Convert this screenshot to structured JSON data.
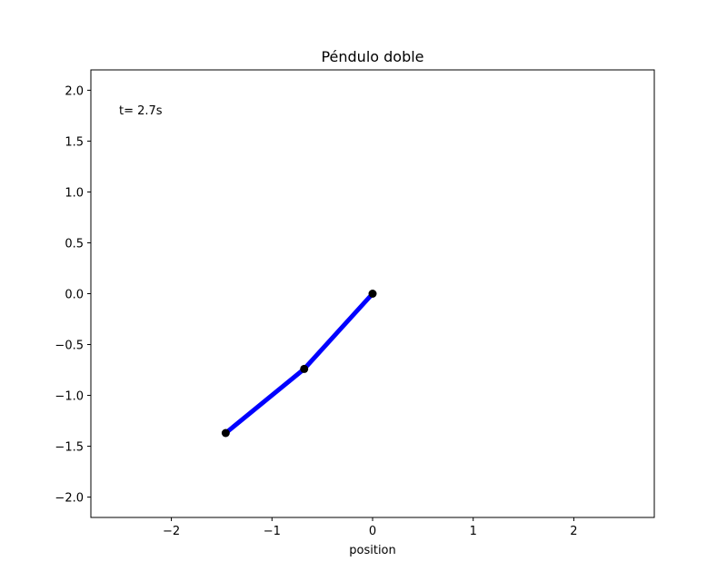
{
  "chart_data": {
    "type": "line",
    "title": "Péndulo doble",
    "xlabel": "position",
    "ylabel": "",
    "xlim": [
      -2.8,
      2.8
    ],
    "ylim": [
      -2.2,
      2.2
    ],
    "xticks": [
      -2,
      -1,
      0,
      1,
      2
    ],
    "xtick_labels": [
      "−2",
      "−1",
      "0",
      "1",
      "2"
    ],
    "yticks": [
      2.0,
      1.5,
      1.0,
      0.5,
      0.0,
      -0.5,
      -1.0,
      -1.5,
      -2.0
    ],
    "ytick_labels": [
      "2.0",
      "1.5",
      "1.0",
      "0.5",
      "0.0",
      "−0.5",
      "−1.0",
      "−1.5",
      "−2.0"
    ],
    "grid": false,
    "annotation": "t= 2.7s",
    "series": [
      {
        "x": [
          0.0,
          -0.68,
          -1.46
        ],
        "y": [
          0.0,
          -0.74,
          -1.37
        ],
        "line_color": "#0000ff",
        "marker_color": "#000000",
        "marker": "circle"
      }
    ]
  }
}
